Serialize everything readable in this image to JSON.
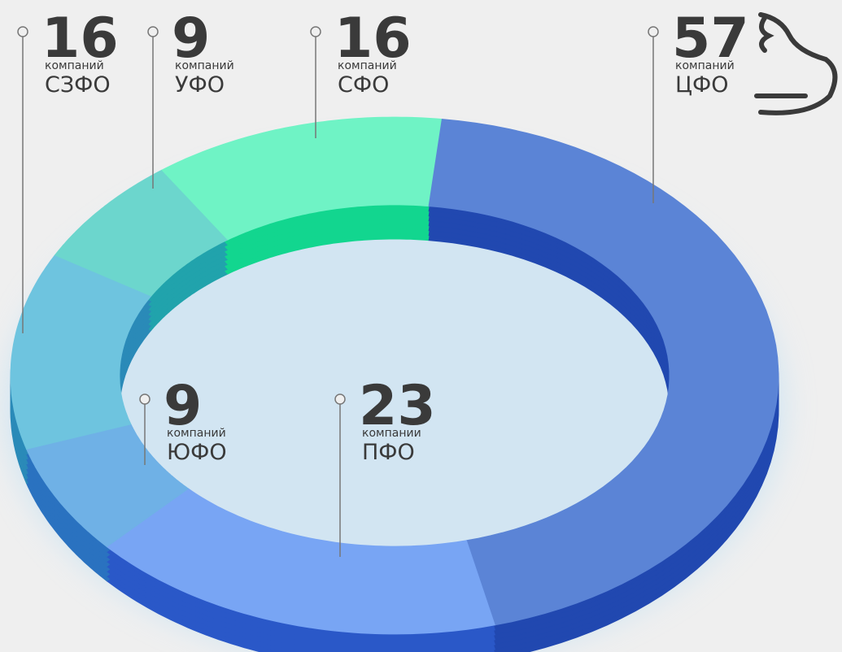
{
  "chart_data": {
    "type": "donut",
    "categories": [
      "ЦФО",
      "ПФО",
      "ЮФО",
      "СЗФО",
      "УФО",
      "СФО"
    ],
    "values": [
      57,
      23,
      9,
      16,
      9,
      16
    ],
    "value_units": [
      "компаний",
      "компании",
      "компаний",
      "компаний",
      "компаний",
      "компаний"
    ],
    "colors": [
      "#5b84d6",
      "#78a5f4",
      "#6fb1e6",
      "#6ec4df",
      "#6cd6cd",
      "#6ff3c5"
    ],
    "side_colors": [
      "#2148b0",
      "#2a58c8",
      "#2a72c0",
      "#2a8ab8",
      "#21a3ac",
      "#12d68f"
    ]
  }
}
